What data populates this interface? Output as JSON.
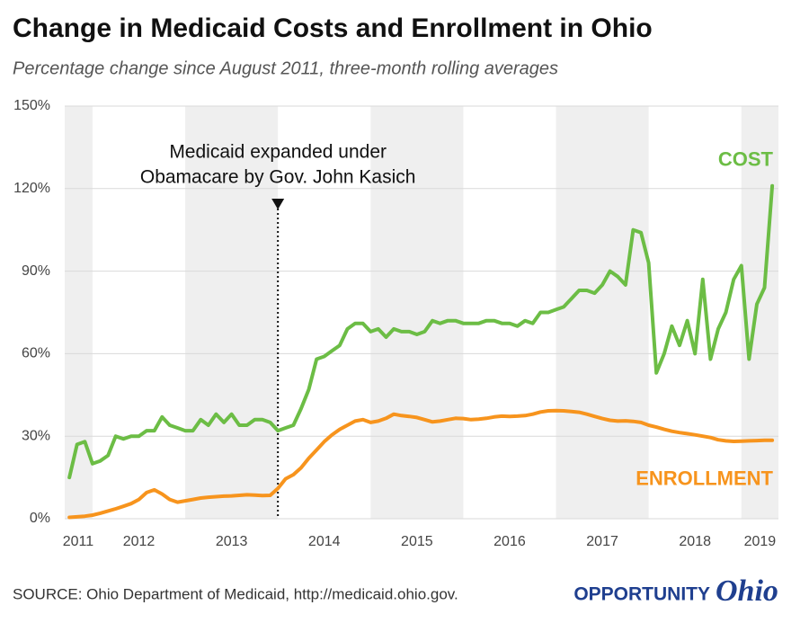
{
  "chart_data": {
    "type": "line",
    "title": "Change in Medicaid Costs and Enrollment in Ohio",
    "subtitle": "Percentage change since August 2011, three-month rolling averages",
    "x": [
      2011.75,
      2011.833,
      2011.917,
      2012,
      2012.083,
      2012.167,
      2012.25,
      2012.333,
      2012.417,
      2012.5,
      2012.583,
      2012.667,
      2012.75,
      2012.833,
      2012.917,
      2013,
      2013.083,
      2013.167,
      2013.25,
      2013.333,
      2013.417,
      2013.5,
      2013.583,
      2013.667,
      2013.75,
      2013.833,
      2013.917,
      2014,
      2014.083,
      2014.167,
      2014.25,
      2014.333,
      2014.417,
      2014.5,
      2014.583,
      2014.667,
      2014.75,
      2014.833,
      2014.917,
      2015,
      2015.083,
      2015.167,
      2015.25,
      2015.333,
      2015.417,
      2015.5,
      2015.583,
      2015.667,
      2015.75,
      2015.833,
      2015.917,
      2016,
      2016.083,
      2016.167,
      2016.25,
      2016.333,
      2016.417,
      2016.5,
      2016.583,
      2016.667,
      2016.75,
      2016.833,
      2016.917,
      2017,
      2017.083,
      2017.167,
      2017.25,
      2017.333,
      2017.417,
      2017.5,
      2017.583,
      2017.667,
      2017.75,
      2017.833,
      2017.917,
      2018,
      2018.083,
      2018.167,
      2018.25,
      2018.333,
      2018.417,
      2018.5,
      2018.583,
      2018.667,
      2018.75,
      2018.833,
      2018.917,
      2019,
      2019.083,
      2019.167,
      2019.25,
      2019.333
    ],
    "series": [
      {
        "name": "COST",
        "color": "#6cbd45",
        "values": [
          15,
          27,
          28,
          20,
          21,
          23,
          30,
          29,
          30,
          30,
          32,
          32,
          37,
          34,
          33,
          32,
          32,
          36,
          34,
          38,
          35,
          38,
          34,
          34,
          36,
          36,
          35,
          32,
          33,
          34,
          40,
          47,
          58,
          59,
          61,
          63,
          69,
          71,
          71,
          68,
          69,
          66,
          69,
          68,
          68,
          67,
          68,
          72,
          71,
          72,
          72,
          71,
          71,
          71,
          72,
          72,
          71,
          71,
          70,
          72,
          71,
          75,
          75,
          76,
          77,
          80,
          83,
          83,
          82,
          85,
          90,
          88,
          85,
          105,
          104,
          93,
          53,
          60,
          70,
          63,
          72,
          60,
          87,
          58,
          69,
          75,
          87,
          92,
          58,
          78,
          84,
          121
        ]
      },
      {
        "name": "ENROLLMENT",
        "color": "#f7941d",
        "values": [
          0.5,
          0.7,
          0.9,
          1.3,
          2,
          2.8,
          3.6,
          4.5,
          5.5,
          7,
          9.5,
          10.5,
          9,
          7,
          6,
          6.5,
          7,
          7.5,
          7.8,
          8,
          8.2,
          8.3,
          8.5,
          8.7,
          8.6,
          8.4,
          8.5,
          11,
          14.5,
          16,
          18.5,
          22,
          25,
          28,
          30.5,
          32.5,
          34,
          35.5,
          36,
          35,
          35.5,
          36.5,
          38,
          37.5,
          37.2,
          36.8,
          36,
          35.2,
          35.5,
          36,
          36.5,
          36.4,
          36,
          36.2,
          36.5,
          37,
          37.3,
          37.2,
          37.3,
          37.5,
          38,
          38.8,
          39.2,
          39.3,
          39.2,
          39,
          38.7,
          38,
          37.2,
          36.4,
          35.8,
          35.5,
          35.6,
          35.4,
          35,
          34,
          33.3,
          32.5,
          31.8,
          31.3,
          30.9,
          30.5,
          30,
          29.5,
          28.7,
          28.3,
          28.1,
          28.2,
          28.3,
          28.4,
          28.5,
          28.5
        ]
      }
    ],
    "xlim": [
      2011.7,
      2019.4
    ],
    "xticks": [
      {
        "value": 2011.845,
        "label": "2011"
      },
      {
        "value": 2012.5,
        "label": "2012"
      },
      {
        "value": 2013.5,
        "label": "2013"
      },
      {
        "value": 2014.5,
        "label": "2014"
      },
      {
        "value": 2015.5,
        "label": "2015"
      },
      {
        "value": 2016.5,
        "label": "2016"
      },
      {
        "value": 2017.5,
        "label": "2017"
      },
      {
        "value": 2018.5,
        "label": "2018"
      },
      {
        "value": 2019.2,
        "label": "2019"
      }
    ],
    "ylim": [
      0,
      150
    ],
    "yticks": [
      {
        "value": 0,
        "label": "0%"
      },
      {
        "value": 30,
        "label": "30%"
      },
      {
        "value": 60,
        "label": "60%"
      },
      {
        "value": 90,
        "label": "90%"
      },
      {
        "value": 120,
        "label": "120%"
      },
      {
        "value": 150,
        "label": "150%"
      }
    ],
    "grid": true,
    "annotation": {
      "lines": [
        "Medicaid expanded under",
        "Obamacare by Gov. John Kasich"
      ],
      "x": 2014
    },
    "source": "SOURCE: Ohio Department of Medicaid, http://medicaid.ohio.gov.",
    "logo": {
      "word1": "OPPORTUNITY",
      "word2": "Ohio"
    }
  }
}
